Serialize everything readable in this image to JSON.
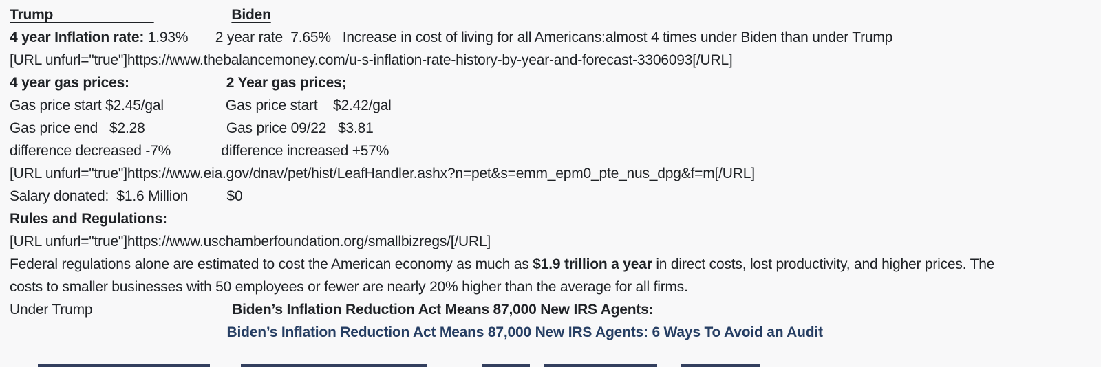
{
  "page": {
    "background_color": "#f8f8f9",
    "text_color": "#1f2226",
    "link_color": "#263e63"
  },
  "post": {
    "lines": [
      {
        "segments": [
          {
            "text": "Trump                          "
          },
          {
            "text": "                    "
          },
          {
            "text": "Biden"
          }
        ]
      },
      {
        "segments": [
          {
            "text": "4 year Inflation rate:"
          },
          {
            "text": " 1.93%       2 year rate  7.65%   Increase in cost of living for all Americans:almost 4 times under Biden than under Trump"
          }
        ]
      },
      {
        "segments": [
          {
            "text": "[URL unfurl=\"true\"]https://www.thebalancemoney.com/u-s-inflation-rate-history-by-year-and-forecast-3306093[/URL]"
          }
        ]
      },
      {
        "segments": [
          {
            "text": "4 year gas prices:                         2 Year gas prices;"
          }
        ]
      },
      {
        "segments": [
          {
            "text": "Gas price start $2.45/gal                Gas price start    $2.42/gal"
          }
        ]
      },
      {
        "segments": [
          {
            "text": "Gas price end   $2.28                     Gas price 09/22   $3.81"
          }
        ]
      },
      {
        "segments": [
          {
            "text": "difference decreased -7%             difference increased +57%"
          }
        ]
      },
      {
        "segments": [
          {
            "text": "[URL unfurl=\"true\"]https://www.eia.gov/dnav/pet/hist/LeafHandler.ashx?n=pet&s=emm_epm0_pte_nus_dpg&f=m[/URL]"
          }
        ]
      },
      {
        "segments": [
          {
            "text": "Salary donated:  $1.6 Million          $0"
          }
        ]
      },
      {
        "segments": [
          {
            "text": "Rules and Regulations:"
          }
        ]
      },
      {
        "segments": [
          {
            "text": "[URL unfurl=\"true\"]https://www.uschamberfoundation.org/smallbizregs/[/URL]"
          }
        ]
      },
      {
        "segments": [
          {
            "text": "Federal regulations alone are estimated to cost the American economy as much as "
          },
          {
            "text": "$1.9 trillion a year"
          },
          {
            "text": " in direct costs, lost productivity, and higher prices. The"
          }
        ]
      },
      {
        "segments": [
          {
            "text": "costs to smaller businesses with 50 employees or fewer are nearly 20% higher than the average for all firms."
          }
        ]
      },
      {
        "segments": [
          {
            "text": "Under Trump                                    "
          },
          {
            "text": "Biden’s Inflation Reduction Act Means 87,000 New IRS Agents:"
          }
        ]
      },
      {
        "segments": [
          {
            "text": "                                                        "
          },
          {
            "text": "Biden’s Inflation Reduction Act Means 87,000 New IRS Agents: 6 Ways To Avoid an Audit"
          }
        ]
      }
    ]
  }
}
